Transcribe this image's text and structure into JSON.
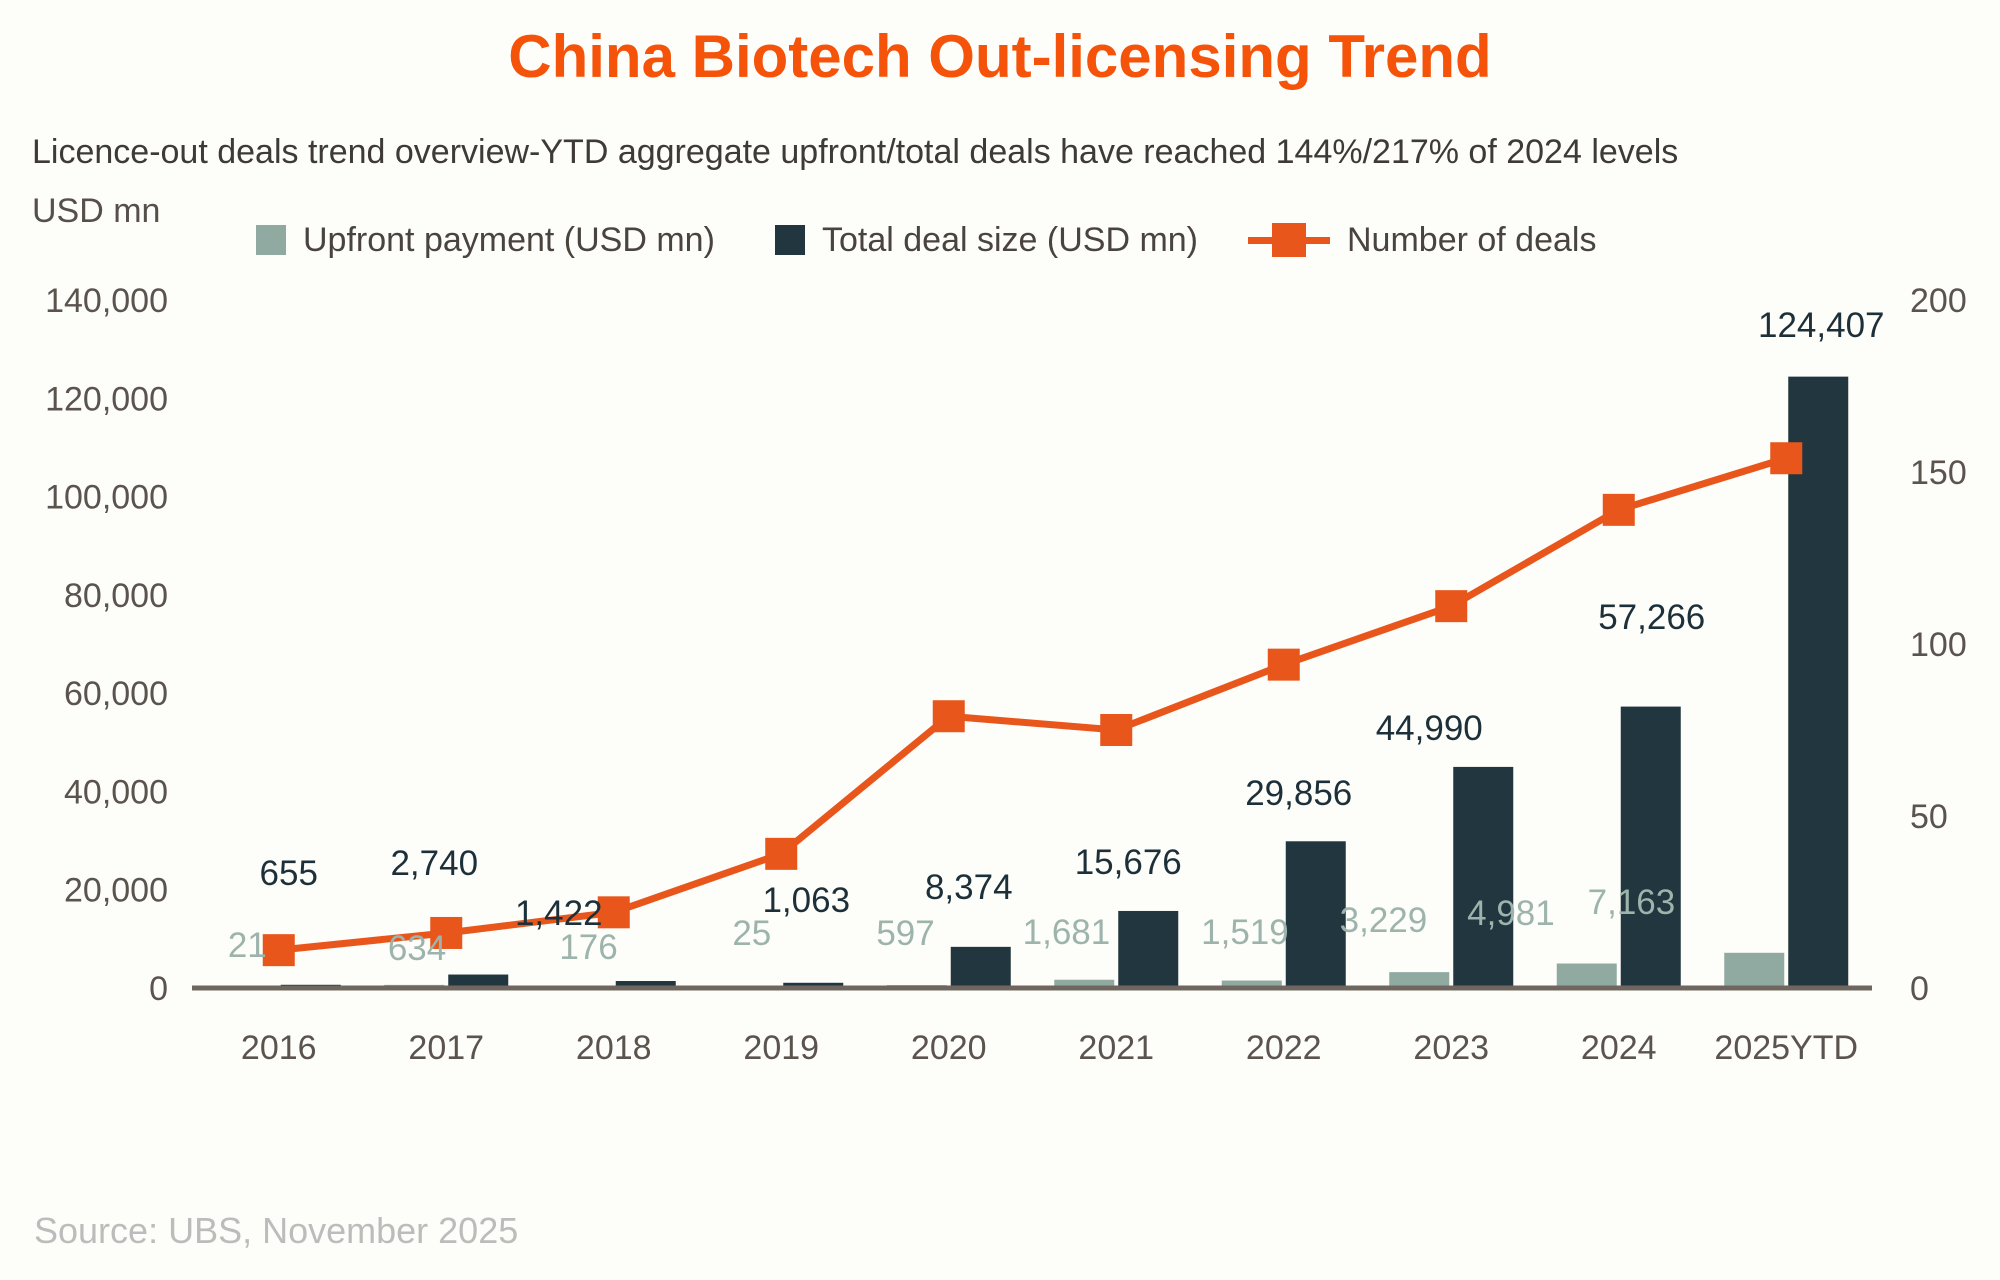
{
  "page": {
    "background_color": "#fdfdf9"
  },
  "chart_data": {
    "type": "combo-bar-line",
    "title": "China Biotech Out-licensing Trend",
    "subtitle": "Licence-out deals trend overview-YTD aggregate upfront/total deals have reached 144%/217% of 2024 levels",
    "source": "Source: UBS, November 2025",
    "categories": [
      "2016",
      "2017",
      "2018",
      "2019",
      "2020",
      "2021",
      "2022",
      "2023",
      "2024",
      "2025YTD"
    ],
    "left_axis": {
      "unit_label": "USD mn",
      "min": 0,
      "max": 140000,
      "step": 20000,
      "tick_labels": [
        "0",
        "20,000",
        "40,000",
        "60,000",
        "80,000",
        "100,000",
        "120,000",
        "140,000"
      ]
    },
    "right_axis": {
      "min": 0,
      "max": 200,
      "step": 50,
      "tick_labels": [
        "0",
        "50",
        "100",
        "150",
        "200"
      ]
    },
    "grid": "off",
    "legend_position": "top",
    "series": [
      {
        "name": "Upfront payment (USD mn)",
        "type": "bar",
        "axis": "left",
        "color": "#90aaa2",
        "label_color": "#9db4ac",
        "values": [
          21,
          634,
          176,
          25,
          597,
          1681,
          1519,
          3229,
          4981,
          7163
        ],
        "data_labels": [
          "21",
          "634",
          "176",
          "25",
          "597",
          "1,681",
          "1,519",
          "3,229",
          "4,981",
          "7,163"
        ]
      },
      {
        "name": "Total deal size (USD mn)",
        "type": "bar",
        "axis": "left",
        "color": "#21363e",
        "label_color": "#1d3039",
        "values": [
          655,
          2740,
          1422,
          1063,
          8374,
          15676,
          29856,
          44990,
          57266,
          124407
        ],
        "data_labels": [
          "655",
          "2,740",
          "1,422",
          "1,063",
          "8,374",
          "15,676",
          "29,856",
          "44,990",
          "57,266",
          "124,407"
        ]
      },
      {
        "name": "Number of deals",
        "type": "line",
        "axis": "right",
        "color": "#e8561c",
        "values": [
          11,
          16,
          22,
          39,
          79,
          75,
          94,
          111,
          139,
          154
        ],
        "values_estimated_from_axis": true,
        "data_labels": []
      }
    ],
    "axis_text_color": "#5b534d",
    "baseline_color": "#6f6660"
  }
}
